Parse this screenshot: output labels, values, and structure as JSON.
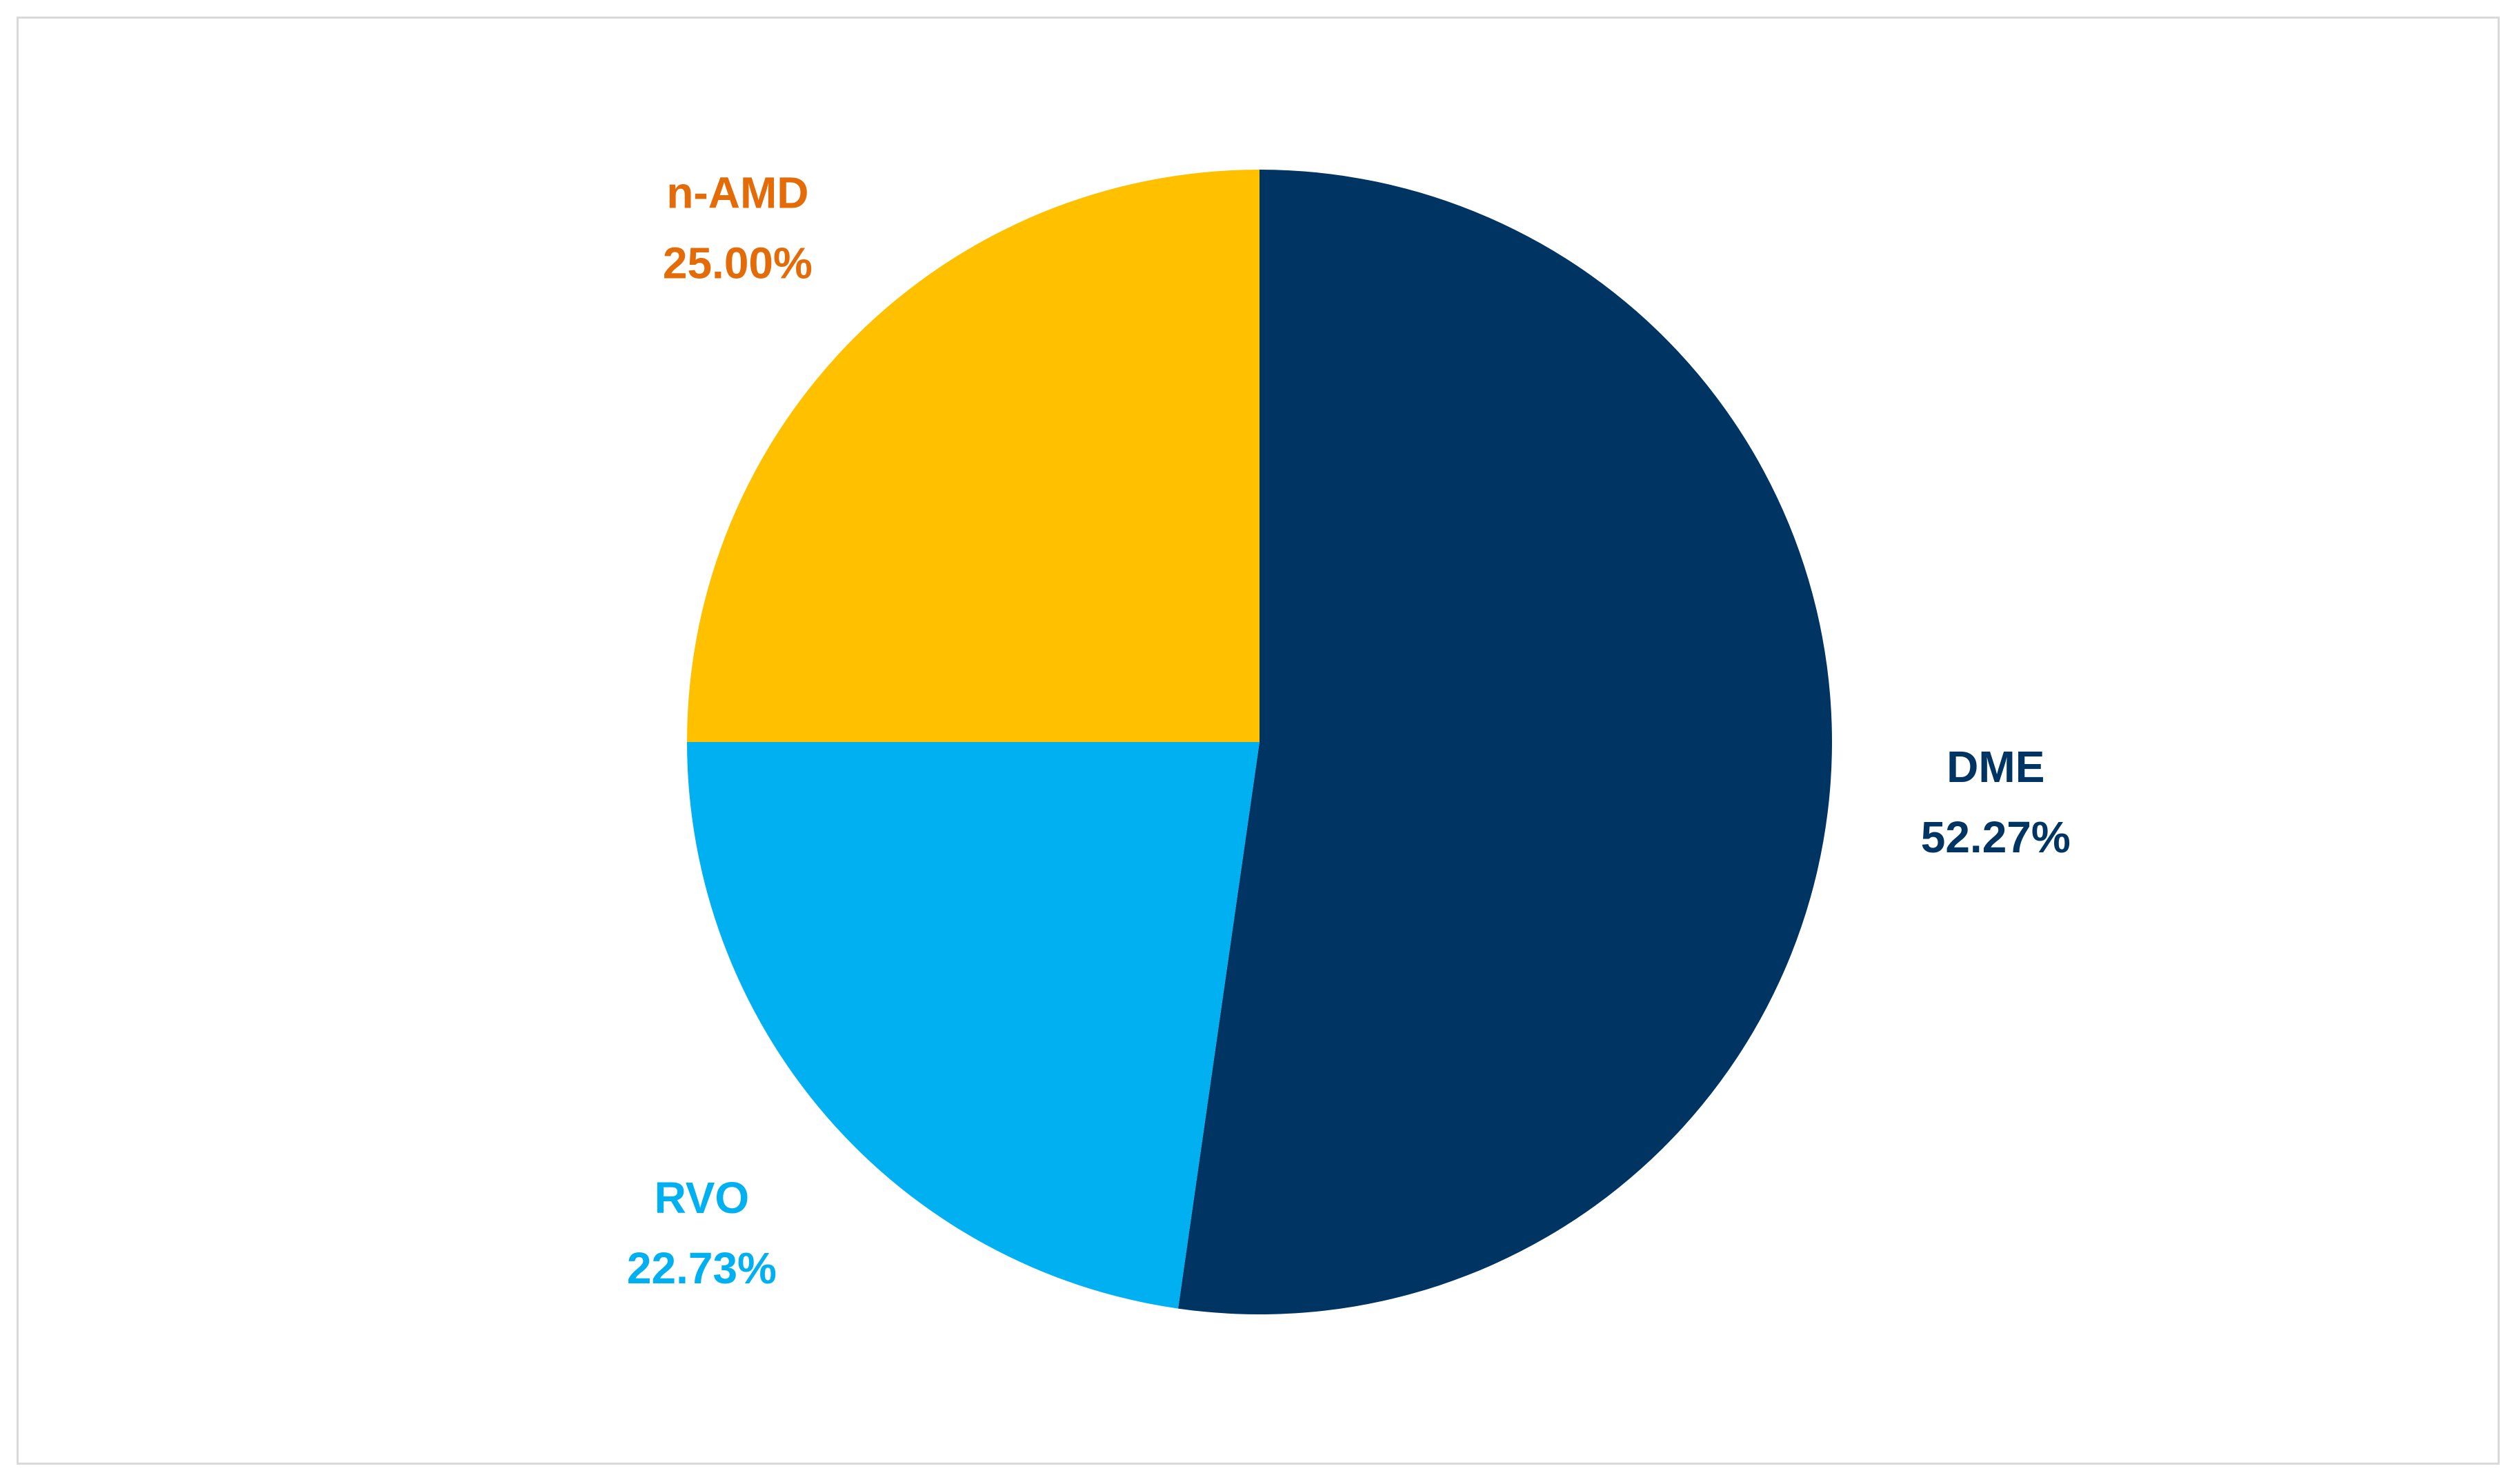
{
  "chart_data": {
    "type": "pie",
    "title": "",
    "start_angle_deg": 0,
    "direction": "clockwise",
    "slices": [
      {
        "label": "DME",
        "value": 52.27,
        "value_label": "52.27%",
        "color": "#003462",
        "label_color": "#003462"
      },
      {
        "label": "RVO",
        "value": 22.73,
        "value_label": "22.73%",
        "color": "#00b0f0",
        "label_color": "#00b0f0"
      },
      {
        "label": "n-AMD",
        "value": 25.0,
        "value_label": "25.00%",
        "color": "#ffc000",
        "label_color": "#e36c09"
      }
    ],
    "labels_position": "outside"
  }
}
